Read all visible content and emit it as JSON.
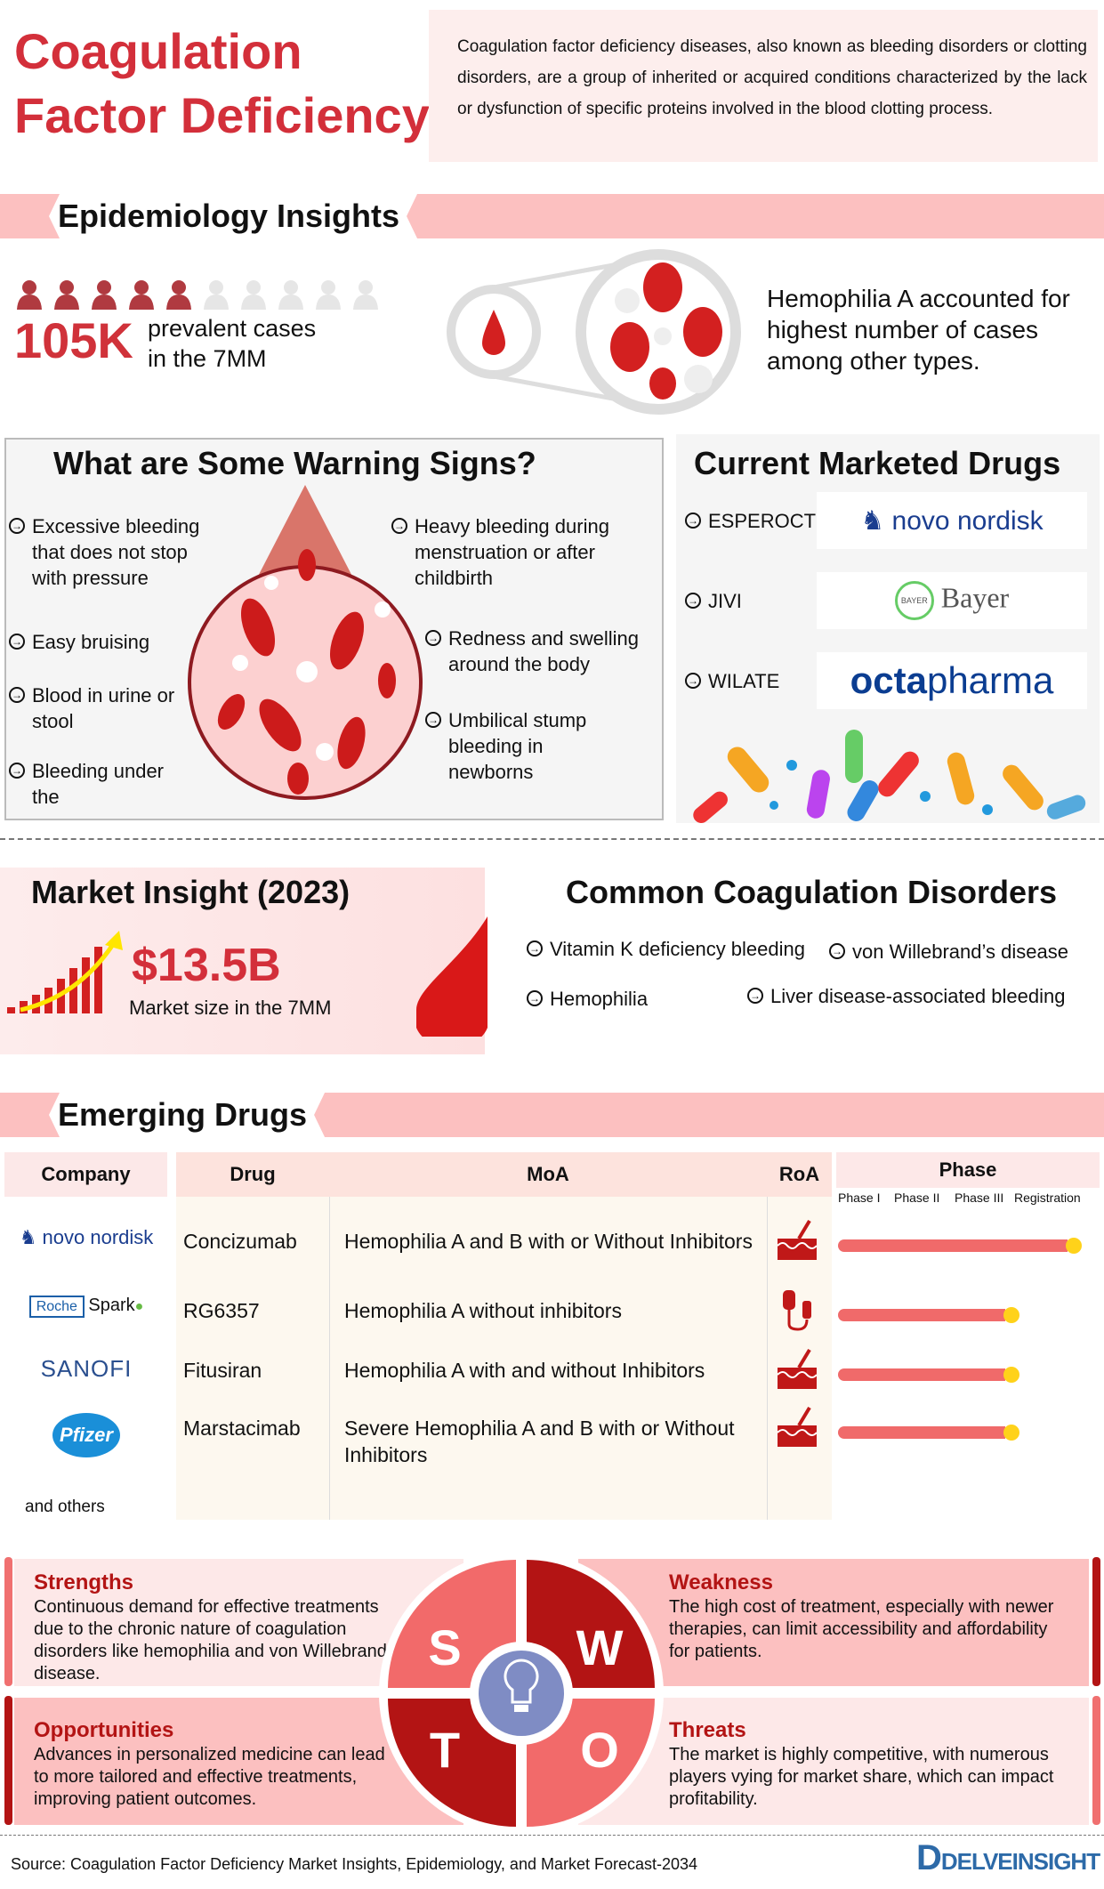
{
  "header": {
    "title_line1": "Coagulation",
    "title_line2": "Factor Deficiency",
    "description": "Coagulation factor deficiency diseases, also known as bleeding disorders or clotting disorders, are a group of inherited or acquired conditions characterized by the lack or dysfunction of specific proteins involved in the blood clotting process."
  },
  "epidemiology": {
    "heading": "Epidemiology Insights",
    "stat": "105K",
    "stat_label_1": "prevalent cases",
    "stat_label_2": "in the 7MM",
    "people_filled": 5,
    "people_total": 10,
    "insight": "Hemophilia A accounted for highest number of cases among other types."
  },
  "warning": {
    "heading": "What are Some Warning Signs?",
    "items": [
      "Excessive bleeding that does not stop with pressure",
      "Easy bruising",
      "Blood in urine or stool",
      "Bleeding under the",
      "Heavy bleeding during menstruation or after childbirth",
      "Redness and swelling around the body",
      "Umbilical stump bleeding in newborns"
    ]
  },
  "marketed": {
    "heading": "Current Marketed Drugs",
    "drugs": [
      {
        "name": "ESPEROCT",
        "company": "novo nordisk"
      },
      {
        "name": "JIVI",
        "company": "Bayer"
      },
      {
        "name": "WILATE",
        "company": "octapharma"
      }
    ]
  },
  "market": {
    "heading": "Market Insight (2023)",
    "value": "$13.5B",
    "label": "Market size in the 7MM"
  },
  "disorders": {
    "heading": "Common Coagulation Disorders",
    "items": [
      "Vitamin K deficiency bleeding",
      "von Willebrand’s disease",
      "Hemophilia",
      "Liver disease-associated bleeding"
    ]
  },
  "emerging": {
    "heading": "Emerging Drugs",
    "columns": {
      "company": "Company",
      "drug": "Drug",
      "moa": "MoA",
      "roa": "RoA",
      "phase": "Phase"
    },
    "phases": [
      "Phase I",
      "Phase II",
      "Phase III",
      "Registration"
    ],
    "rows": [
      {
        "company": "novo nordisk",
        "drug": "Concizumab",
        "moa": "Hemophilia A and B with or Without Inhibitors",
        "roa": "subcutaneous",
        "phase": "Registration"
      },
      {
        "company": "Roche / Spark",
        "drug": "RG6357",
        "moa": "Hemophilia A without inhibitors",
        "roa": "intravenous",
        "phase": "Phase III"
      },
      {
        "company": "SANOFI",
        "drug": "Fitusiran",
        "moa": "Hemophilia A with and without Inhibitors",
        "roa": "subcutaneous",
        "phase": "Phase III"
      },
      {
        "company": "Pfizer",
        "drug": "Marstacimab",
        "moa": "Severe Hemophilia A and B with or Without Inhibitors",
        "roa": "subcutaneous",
        "phase": "Phase III"
      }
    ],
    "others": "and others"
  },
  "swot": {
    "strengths": {
      "letter": "S",
      "title": "Strengths",
      "text": "Continuous demand for effective treatments due to the chronic nature of coagulation disorders like hemophilia and von Willebrand disease."
    },
    "weakness": {
      "letter": "W",
      "title": "Weakness",
      "text": "The high cost of treatment, especially with newer therapies, can limit accessibility and affordability for patients."
    },
    "opportunities": {
      "letter": "T",
      "title": "Opportunities",
      "text": "Advances in personalized medicine can lead to more tailored and effective treatments, improving patient outcomes."
    },
    "threats": {
      "letter": "O",
      "title": "Threats",
      "text": "The market is highly competitive, with numerous players vying for market share, which can impact profitability."
    }
  },
  "footer": {
    "source": "Source: Coagulation Factor Deficiency Market Insights, Epidemiology, and Market Forecast-2034",
    "brand": "DELVEINSIGHT"
  },
  "colors": {
    "red": "#d32f3a",
    "dark_red": "#b31414",
    "pink": "#fcc0c0",
    "light_pink": "#fde8e8",
    "salmon": "#f26a6a",
    "bulb_blue": "#7f8cc4",
    "phase_dot": "#ffd21a"
  }
}
